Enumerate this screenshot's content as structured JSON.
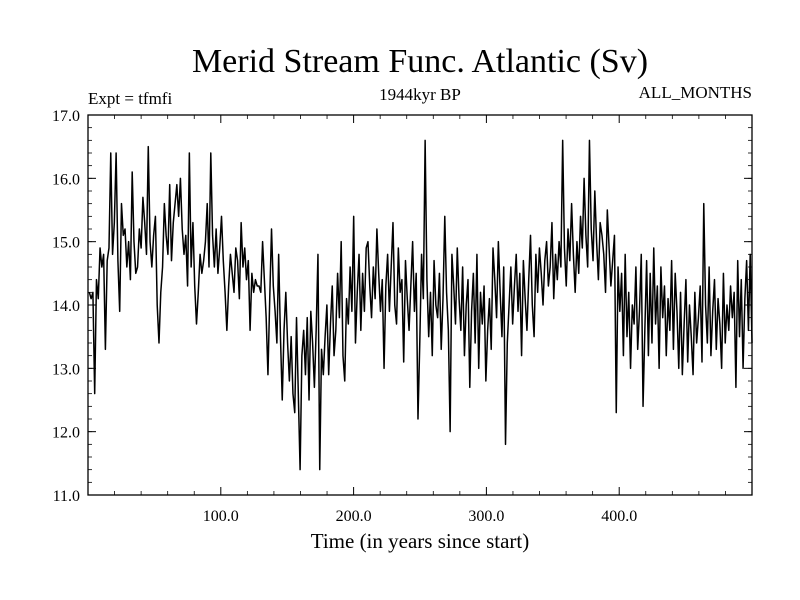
{
  "chart_data": {
    "type": "line",
    "title": "Merid Stream Func. Atlantic (Sv)",
    "subtitle": "1944kyr BP",
    "left_label": "Expt = tfmfi",
    "right_label": "ALL_MONTHS",
    "xlabel": "Time (in years since start)",
    "ylabel": "",
    "xlim": [
      0,
      500
    ],
    "ylim": [
      11.0,
      17.0
    ],
    "x_ticks": [
      100,
      200,
      300,
      400
    ],
    "x_tick_labels": [
      "100.0",
      "200.0",
      "300.0",
      "400.0"
    ],
    "y_ticks": [
      11,
      12,
      13,
      14,
      15,
      16,
      17
    ],
    "y_tick_labels": [
      "11.0",
      "12.0",
      "13.0",
      "14.0",
      "15.0",
      "16.0",
      "17.0"
    ],
    "grid": false,
    "series": [
      {
        "name": "Atlantic MSF",
        "x_start": 1,
        "x_step": 1,
        "values": [
          14.2,
          14.1,
          14.2,
          12.6,
          14.4,
          14.1,
          14.9,
          14.6,
          14.8,
          13.3,
          14.7,
          14.9,
          16.4,
          14.8,
          15.3,
          16.4,
          14.7,
          13.9,
          15.6,
          15.1,
          15.2,
          14.6,
          15.0,
          14.4,
          16.1,
          15.0,
          14.5,
          14.6,
          15.2,
          14.9,
          15.7,
          15.3,
          14.8,
          16.5,
          15.0,
          14.6,
          15.1,
          15.4,
          14.0,
          13.4,
          14.2,
          14.6,
          15.6,
          15.1,
          14.8,
          15.9,
          14.7,
          15.3,
          15.6,
          15.9,
          15.4,
          16.0,
          15.2,
          14.8,
          15.1,
          14.3,
          16.4,
          14.6,
          15.3,
          14.3,
          13.7,
          14.2,
          14.8,
          14.5,
          14.7,
          15.0,
          15.6,
          14.6,
          16.4,
          15.1,
          14.6,
          15.2,
          14.5,
          14.9,
          15.4,
          14.7,
          14.2,
          13.6,
          14.3,
          14.8,
          14.5,
          14.2,
          14.9,
          14.7,
          14.1,
          15.3,
          14.6,
          14.9,
          14.4,
          14.7,
          13.6,
          14.5,
          14.2,
          14.4,
          14.3,
          14.3,
          14.2,
          15.0,
          14.4,
          13.8,
          12.9,
          14.1,
          15.2,
          14.3,
          13.9,
          13.4,
          14.8,
          13.5,
          12.5,
          13.6,
          14.2,
          13.4,
          12.8,
          13.5,
          12.6,
          12.3,
          13.8,
          12.6,
          11.4,
          13.2,
          13.6,
          12.9,
          13.8,
          12.5,
          13.9,
          13.4,
          12.7,
          13.6,
          14.8,
          11.4,
          13.3,
          12.9,
          13.5,
          14.0,
          12.9,
          13.7,
          14.3,
          13.2,
          13.6,
          14.5,
          13.8,
          15.0,
          13.2,
          12.8,
          14.1,
          13.7,
          14.6,
          13.9,
          15.4,
          13.4,
          14.2,
          14.8,
          13.6,
          14.5,
          13.9,
          14.9,
          15.0,
          14.3,
          13.8,
          14.6,
          14.1,
          15.2,
          14.5,
          13.9,
          14.4,
          13.0,
          14.3,
          14.8,
          13.9,
          14.6,
          15.3,
          14.0,
          13.7,
          14.9,
          14.2,
          14.4,
          13.1,
          14.7,
          14.1,
          13.6,
          14.3,
          15.0,
          13.9,
          14.5,
          12.2,
          13.4,
          14.8,
          14.1,
          16.6,
          14.4,
          13.5,
          14.2,
          13.2,
          14.7,
          14.0,
          13.8,
          14.5,
          13.3,
          14.1,
          15.4,
          14.2,
          13.6,
          12.0,
          14.8,
          14.3,
          13.7,
          14.9,
          14.1,
          13.6,
          14.6,
          13.2,
          14.0,
          14.4,
          12.7,
          13.9,
          14.5,
          13.4,
          14.8,
          13.0,
          14.2,
          13.7,
          14.3,
          12.8,
          13.6,
          14.1,
          13.3,
          14.9,
          14.4,
          13.8,
          15.0,
          14.2,
          13.5,
          14.6,
          11.8,
          13.4,
          14.0,
          14.6,
          13.7,
          14.3,
          14.8,
          13.9,
          14.5,
          13.2,
          14.7,
          14.1,
          13.6,
          14.4,
          15.1,
          14.0,
          13.5,
          14.8,
          14.2,
          14.9,
          14.5,
          14.0,
          14.7,
          15.0,
          14.3,
          14.6,
          15.3,
          14.1,
          14.8,
          14.4,
          15.0,
          14.6,
          16.6,
          14.9,
          14.3,
          15.2,
          14.7,
          15.6,
          14.8,
          14.2,
          15.0,
          14.5,
          15.4,
          14.9,
          16.0,
          15.1,
          14.6,
          16.6,
          15.2,
          14.7,
          15.8,
          15.0,
          14.4,
          15.3,
          15.1,
          14.8,
          14.2,
          15.5,
          14.9,
          14.3,
          14.7,
          15.1,
          12.3,
          14.6,
          13.9,
          14.5,
          13.2,
          14.8,
          13.5,
          14.2,
          13.0,
          14.0,
          13.7,
          14.6,
          13.3,
          13.9,
          14.8,
          12.4,
          13.6,
          14.7,
          13.2,
          14.5,
          13.4,
          14.9,
          13.7,
          14.3,
          13.0,
          14.6,
          13.8,
          14.3,
          13.2,
          14.1,
          13.6,
          14.7,
          13.3,
          14.5,
          13.9,
          13.0,
          14.2,
          12.9,
          13.7,
          14.4,
          13.1,
          14.0,
          13.5,
          12.9,
          14.2,
          13.4,
          13.8,
          14.3,
          13.1,
          15.6,
          14.0,
          13.4,
          14.6,
          13.2,
          13.9,
          14.4,
          13.3,
          14.1,
          13.7,
          13.0,
          14.5,
          13.4,
          14.0,
          13.6,
          14.3,
          13.8,
          14.2,
          12.7,
          14.7,
          13.5,
          14.4,
          13.0,
          14.1,
          14.7,
          13.6,
          14.8,
          13.4
        ]
      }
    ]
  }
}
